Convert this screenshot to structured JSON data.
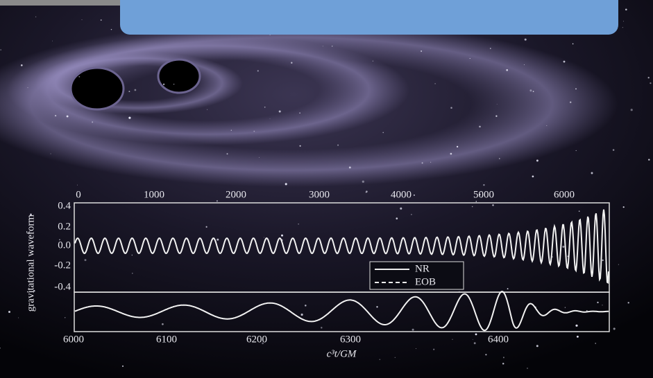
{
  "figure": {
    "top_ticks": [
      "0",
      "1000",
      "2000",
      "3000",
      "4000",
      "5000",
      "6000"
    ],
    "left_ticks": [
      "0.4",
      "0.2",
      "0.0",
      "-0.2",
      "-0.4"
    ],
    "y_label": "gravitational waveform",
    "legend": [
      "NR",
      "EOB"
    ],
    "bottom_ticks": [
      "6000",
      "6100",
      "6200",
      "6300",
      "6400"
    ],
    "x_label": "c³t/GM"
  }
}
